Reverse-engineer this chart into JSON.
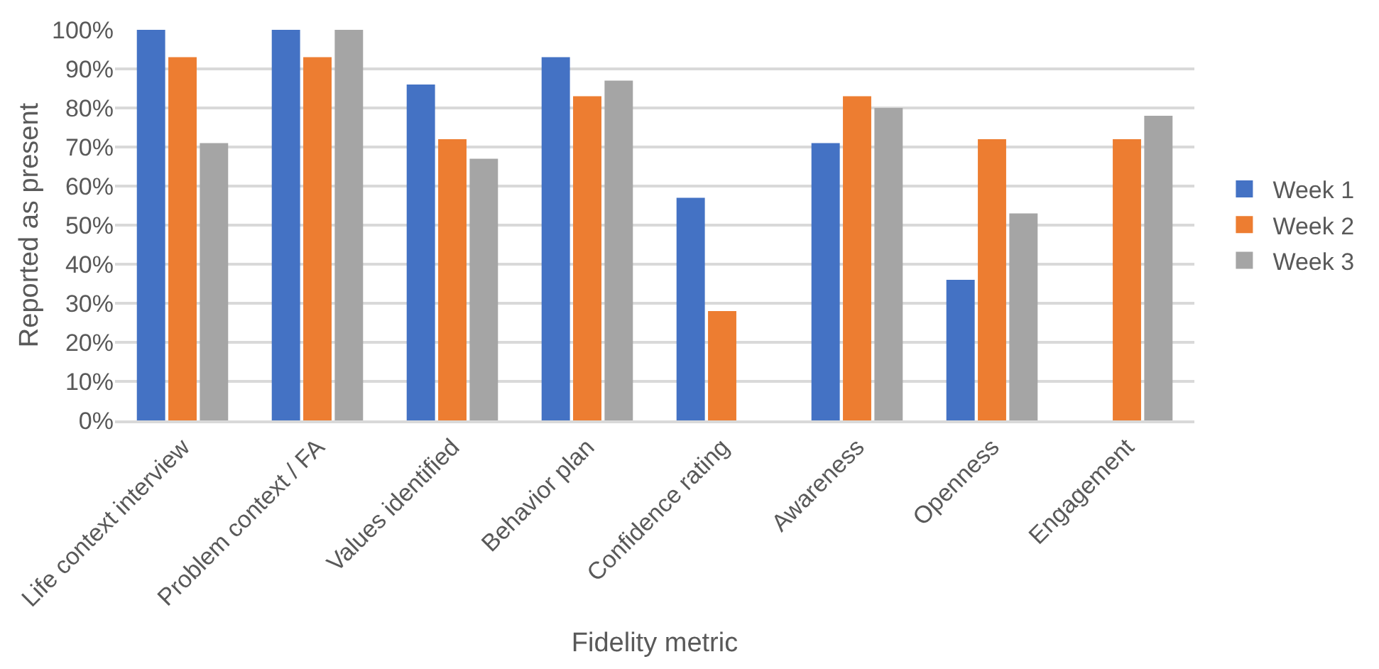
{
  "chart_data": {
    "type": "bar",
    "xlabel": "Fidelity metric",
    "ylabel": "Reported as present",
    "categories": [
      "Life context interview",
      "Problem context / FA",
      "Values identified",
      "Behavior plan",
      "Confidence rating",
      "Awareness",
      "Openness",
      "Engagement"
    ],
    "series": [
      {
        "name": "Week 1",
        "color": "#4472c4",
        "values": [
          100,
          100,
          86,
          93,
          57,
          71,
          36,
          null
        ]
      },
      {
        "name": "Week 2",
        "color": "#ed7d31",
        "values": [
          93,
          93,
          72,
          83,
          28,
          83,
          72,
          72
        ]
      },
      {
        "name": "Week 3",
        "color": "#a5a5a5",
        "values": [
          71,
          100,
          67,
          87,
          null,
          80,
          53,
          78
        ]
      }
    ],
    "ylim": [
      0,
      100
    ],
    "yticks": [
      {
        "value": 0,
        "label": "0%"
      },
      {
        "value": 10,
        "label": "10%"
      },
      {
        "value": 20,
        "label": "20%"
      },
      {
        "value": 30,
        "label": "30%"
      },
      {
        "value": 40,
        "label": "40%"
      },
      {
        "value": 50,
        "label": "50%"
      },
      {
        "value": 60,
        "label": "60%"
      },
      {
        "value": 70,
        "label": "70%"
      },
      {
        "value": 80,
        "label": "80%"
      },
      {
        "value": 90,
        "label": "90%"
      },
      {
        "value": 100,
        "label": "100%"
      }
    ],
    "grid": "y",
    "legend": "right"
  }
}
